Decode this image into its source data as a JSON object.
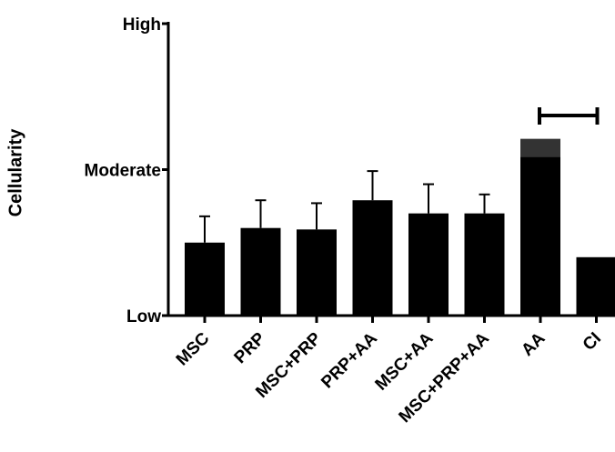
{
  "chart_data": {
    "type": "bar",
    "title": "",
    "xlabel": "",
    "ylabel": "Cellularity",
    "ylim": [
      0,
      2
    ],
    "yticks": [
      {
        "value": 0,
        "label": "Low"
      },
      {
        "value": 1,
        "label": "Moderate"
      },
      {
        "value": 2,
        "label": "High"
      }
    ],
    "categories": [
      "MSC",
      "PRP",
      "MSC+PRP",
      "PRP+AA",
      "MSC+AA",
      "MSC+PRP+AA",
      "AA",
      "CI"
    ],
    "values": [
      0.5,
      0.6,
      0.59,
      0.79,
      0.7,
      0.7,
      1.21,
      0.4
    ],
    "errors": [
      0.18,
      0.19,
      0.18,
      0.2,
      0.2,
      0.13,
      0,
      0
    ],
    "bar_color": "#000000",
    "annotation": {
      "type": "significance-bracket",
      "from": "AA",
      "to": "CI"
    }
  }
}
